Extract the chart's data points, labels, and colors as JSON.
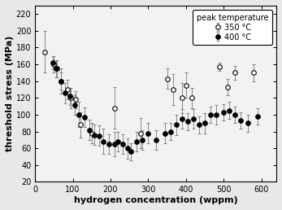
{
  "title": "",
  "xlabel": "hydrogen concentration (wppm)",
  "ylabel": "threshold stress (MPa)",
  "xlim": [
    0,
    640
  ],
  "ylim": [
    20,
    230
  ],
  "xticks": [
    0,
    100,
    200,
    300,
    400,
    500,
    600
  ],
  "yticks": [
    20,
    40,
    60,
    80,
    100,
    120,
    140,
    160,
    180,
    200,
    220
  ],
  "legend_title": "peak temperature",
  "series_350": {
    "label": "350 °C",
    "marker": "o",
    "facecolor": "white",
    "edgecolor": "black",
    "x": [
      25,
      50,
      58,
      68,
      85,
      95,
      107,
      120,
      150,
      210,
      280,
      350,
      365,
      390,
      400,
      415,
      490,
      510,
      530,
      580
    ],
    "y": [
      175,
      160,
      155,
      140,
      130,
      120,
      118,
      88,
      78,
      108,
      78,
      143,
      130,
      120,
      135,
      120,
      157,
      133,
      150,
      150
    ],
    "yerr": [
      25,
      10,
      10,
      15,
      12,
      12,
      10,
      15,
      12,
      25,
      18,
      12,
      18,
      18,
      15,
      12,
      5,
      10,
      8,
      10
    ]
  },
  "series_400": {
    "label": "400 °C",
    "marker": "o",
    "facecolor": "black",
    "edgecolor": "black",
    "x": [
      48,
      55,
      68,
      80,
      92,
      105,
      115,
      130,
      145,
      158,
      170,
      180,
      196,
      210,
      220,
      232,
      245,
      255,
      270,
      285,
      300,
      320,
      345,
      360,
      375,
      390,
      405,
      420,
      435,
      450,
      465,
      480,
      500,
      515,
      530,
      545,
      565,
      590
    ],
    "y": [
      162,
      155,
      140,
      126,
      122,
      112,
      100,
      97,
      82,
      76,
      75,
      68,
      65,
      65,
      68,
      65,
      60,
      56,
      68,
      70,
      78,
      70,
      78,
      80,
      88,
      95,
      92,
      95,
      88,
      90,
      100,
      100,
      103,
      105,
      100,
      93,
      90,
      98
    ],
    "yerr": [
      8,
      10,
      10,
      12,
      10,
      12,
      15,
      12,
      12,
      12,
      12,
      15,
      12,
      15,
      12,
      12,
      12,
      10,
      12,
      12,
      12,
      12,
      12,
      10,
      12,
      12,
      10,
      12,
      10,
      12,
      10,
      12,
      10,
      10,
      10,
      10,
      10,
      10
    ]
  },
  "background_color": "#e8e8e8",
  "plot_bg_color": "#f2f2f2",
  "fontsize_label": 8,
  "fontsize_tick": 7,
  "fontsize_legend_title": 7,
  "fontsize_legend": 7,
  "markersize": 4,
  "elinewidth": 0.7,
  "capsize": 1.5
}
